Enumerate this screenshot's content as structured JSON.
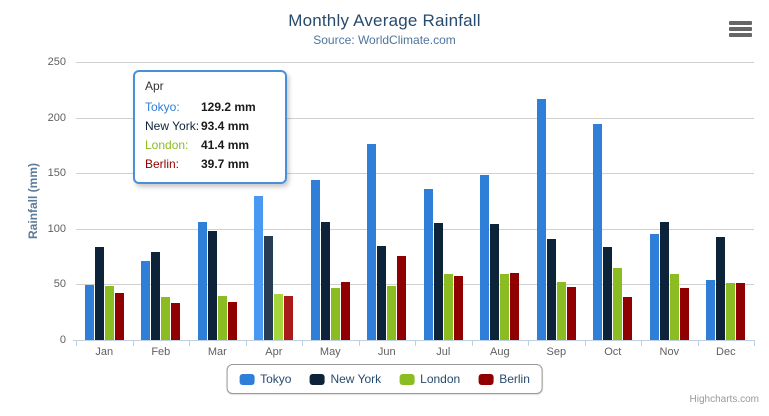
{
  "header": {
    "title": "Monthly Average Rainfall",
    "subtitle": "Source: WorldClimate.com"
  },
  "y_axis": {
    "title": "Rainfall (mm)"
  },
  "credits": "Highcharts.com",
  "colors": {
    "title": "#274b6d",
    "subtitle": "#4d759e",
    "axis_title": "#5c7a99",
    "tick_label": "#606060",
    "grid_line": "#d0d0d0",
    "axis_line": "#c0d0e0",
    "legend_text": "#274b6d",
    "tooltip_border": "#4a90d9"
  },
  "chart_data": {
    "type": "bar",
    "title": "Monthly Average Rainfall",
    "subtitle": "Source: WorldClimate.com",
    "xlabel": "",
    "ylabel": "Rainfall (mm)",
    "ylim": [
      0,
      250
    ],
    "y_ticks": [
      0,
      50,
      100,
      150,
      200,
      250
    ],
    "grid": true,
    "legend_position": "bottom",
    "categories": [
      "Jan",
      "Feb",
      "Mar",
      "Apr",
      "May",
      "Jun",
      "Jul",
      "Aug",
      "Sep",
      "Oct",
      "Nov",
      "Dec"
    ],
    "series": [
      {
        "name": "Tokyo",
        "color": "#2f7ed8",
        "values": [
          49.9,
          71.5,
          106.4,
          129.2,
          144.0,
          176.0,
          135.6,
          148.5,
          216.4,
          194.1,
          95.6,
          54.4
        ]
      },
      {
        "name": "New York",
        "color": "#0d233a",
        "values": [
          83.6,
          78.8,
          98.5,
          93.4,
          106.0,
          84.5,
          105.0,
          104.3,
          91.2,
          83.5,
          106.6,
          92.3
        ]
      },
      {
        "name": "London",
        "color": "#8bbc21",
        "values": [
          48.9,
          38.8,
          39.3,
          41.4,
          47.0,
          48.3,
          59.0,
          59.6,
          52.4,
          65.2,
          59.3,
          51.2
        ]
      },
      {
        "name": "Berlin",
        "color": "#910000",
        "values": [
          42.4,
          33.2,
          34.5,
          39.7,
          52.6,
          75.5,
          57.4,
          60.4,
          47.6,
          39.1,
          46.8,
          51.1
        ]
      }
    ],
    "hovered_category": "Apr"
  },
  "tooltip": {
    "header": "Apr",
    "rows": [
      {
        "name": "Tokyo:",
        "value": "129.2 mm",
        "color": "#2f7ed8"
      },
      {
        "name": "New York:",
        "value": "93.4 mm",
        "color": "#0d233a"
      },
      {
        "name": "London:",
        "value": "41.4 mm",
        "color": "#8bbc21"
      },
      {
        "name": "Berlin:",
        "value": "39.7 mm",
        "color": "#910000"
      }
    ]
  },
  "legend": {
    "items": [
      {
        "label": "Tokyo",
        "color": "#2f7ed8"
      },
      {
        "label": "New York",
        "color": "#0d233a"
      },
      {
        "label": "London",
        "color": "#8bbc21"
      },
      {
        "label": "Berlin",
        "color": "#910000"
      }
    ]
  }
}
